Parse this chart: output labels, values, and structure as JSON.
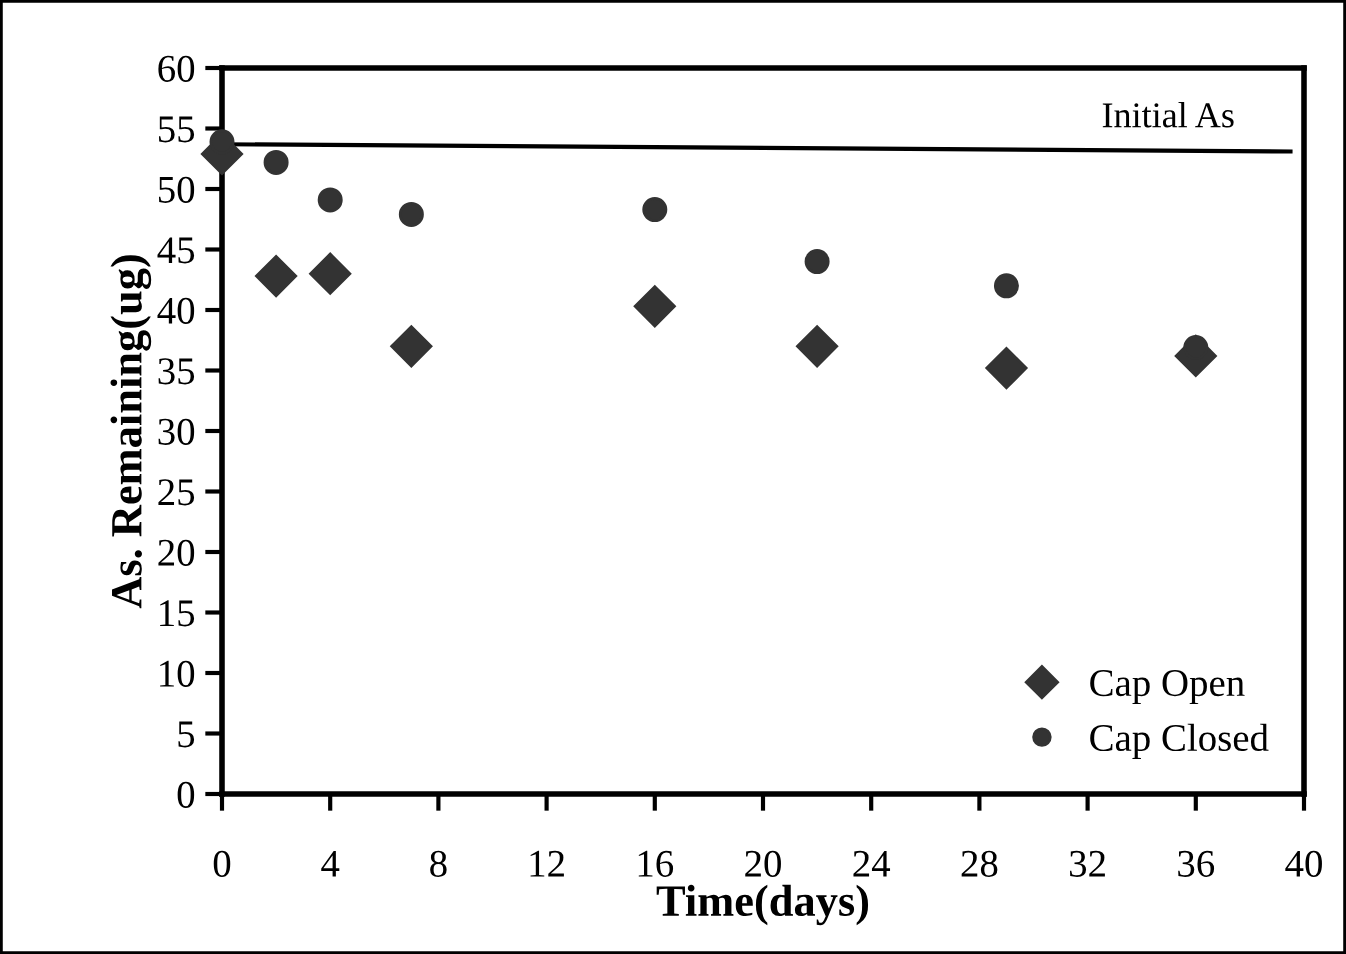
{
  "chart_data": {
    "type": "scatter",
    "xlabel": "Time(days)",
    "ylabel": "As. Remaining(ug)",
    "x": [
      0,
      2,
      4,
      7,
      16,
      22,
      29,
      36
    ],
    "series": [
      {
        "name": "Cap Open",
        "color": "#333333",
        "marker": "diamond",
        "values": [
          52.9,
          42.8,
          43.0,
          37.0,
          40.3,
          37.0,
          35.2,
          36.2
        ]
      },
      {
        "name": "Cap Closed",
        "color": "#333333",
        "marker": "circle",
        "values": [
          53.9,
          52.2,
          49.1,
          47.9,
          48.3,
          44.0,
          42.0,
          36.9
        ]
      },
      {
        "name": "Initial As",
        "type": "line",
        "color": "#000000",
        "x": [
          0,
          39.5
        ],
        "values": [
          53.7,
          53.1
        ]
      }
    ],
    "xlim": [
      0,
      40
    ],
    "xticks": [
      0,
      4,
      8,
      12,
      16,
      20,
      24,
      28,
      32,
      36,
      40
    ],
    "ylim": [
      0,
      60
    ],
    "yticks": [
      0,
      5,
      10,
      15,
      20,
      25,
      30,
      35,
      40,
      45,
      50,
      55,
      60
    ],
    "grid": false,
    "legend": "bottom right"
  }
}
